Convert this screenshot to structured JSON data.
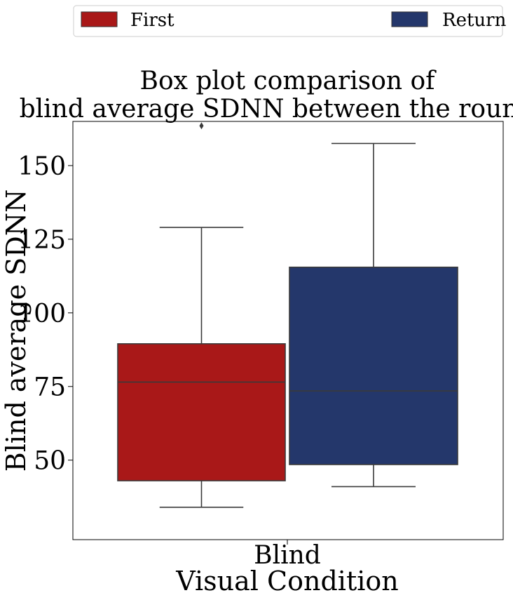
{
  "legend": {
    "items": [
      {
        "label": "First",
        "color": "#a91818"
      },
      {
        "label": "Return",
        "color": "#24376b"
      }
    ]
  },
  "chart_data": {
    "type": "box",
    "title": [
      "Box plot comparison of",
      "blind average SDNN between the rounds."
    ],
    "xlabel": "Visual Condition",
    "ylabel": "Blind average SDNN",
    "categories": [
      "Blind"
    ],
    "ylim": [
      23,
      165
    ],
    "yticks": [
      50,
      75,
      100,
      125,
      150
    ],
    "grid": false,
    "legend_position": "top",
    "series": [
      {
        "name": "First",
        "color": "#a91818",
        "whisker_low": 34,
        "q1": 43,
        "median": 76.5,
        "q3": 89.5,
        "whisker_high": 129,
        "outliers": [
          163.5
        ]
      },
      {
        "name": "Return",
        "color": "#24376b",
        "whisker_low": 41,
        "q1": 48.5,
        "median": 73.5,
        "q3": 115.5,
        "whisker_high": 157.5,
        "outliers": []
      }
    ]
  }
}
